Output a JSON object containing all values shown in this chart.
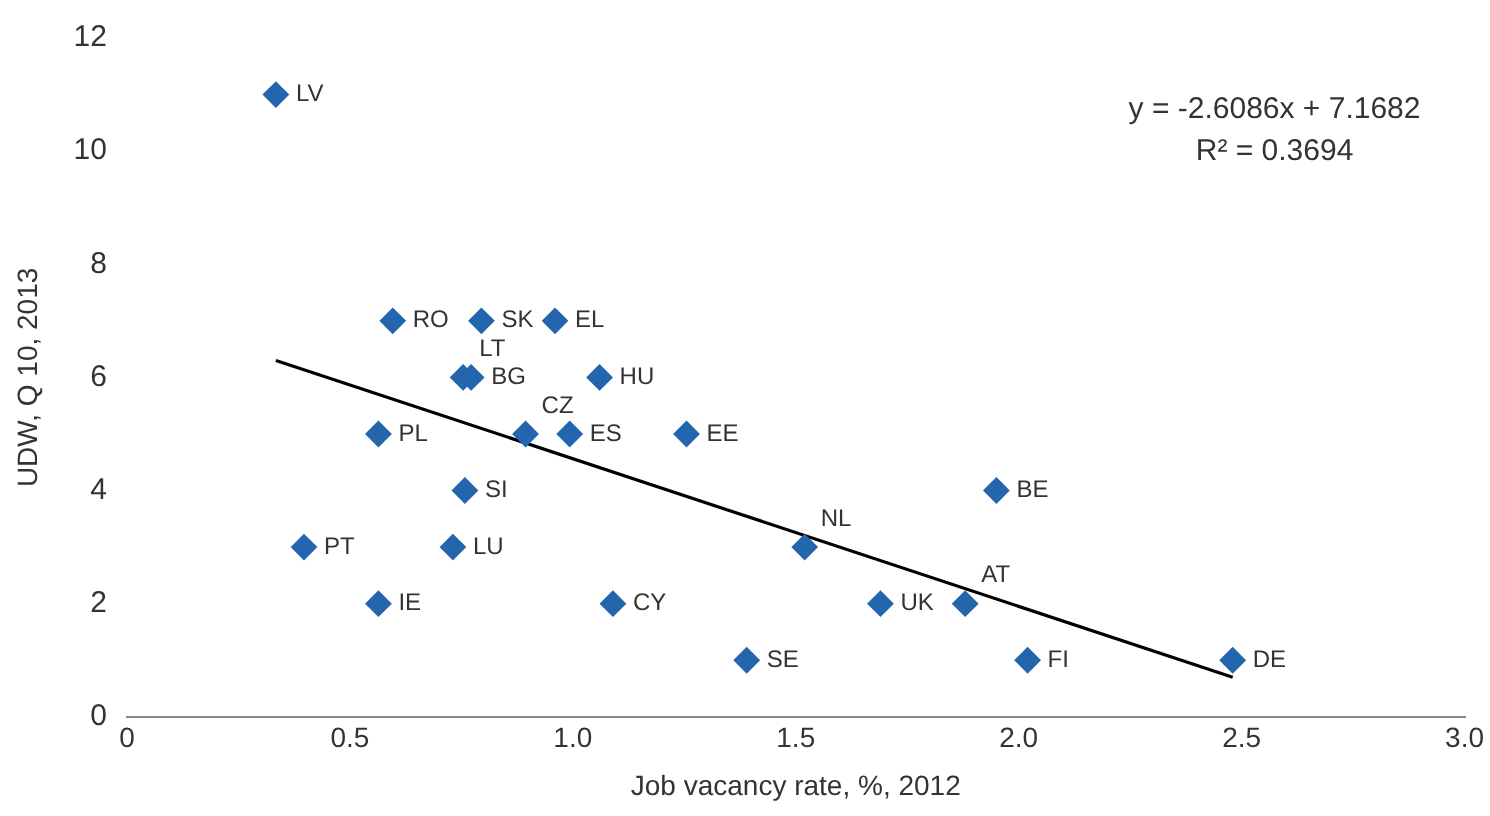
{
  "chart_data": {
    "type": "scatter",
    "xlabel": "Job vacancy rate, %, 2012",
    "ylabel": "UDW, Q 10, 2013",
    "series": [
      {
        "type": "scatter",
        "color": "#2466ae",
        "marker": "diamond",
        "x": [
          0.334,
          0.596,
          0.795,
          0.96,
          0.754,
          0.772,
          1.06,
          0.564,
          0.894,
          0.993,
          1.255,
          0.758,
          1.95,
          0.397,
          0.731,
          1.52,
          0.564,
          1.09,
          1.69,
          1.88,
          1.39,
          2.02,
          2.48
        ],
        "values": [
          11,
          7,
          7,
          7,
          6,
          6,
          6,
          5,
          5,
          5,
          5,
          4,
          4,
          3,
          3,
          3,
          2,
          2,
          2,
          2,
          1,
          1,
          1
        ]
      },
      {
        "type": "line",
        "color": "#000000",
        "marker": "none",
        "line_style": "solid",
        "x": [
          0.334,
          2.48
        ],
        "values": [
          6.3,
          0.7
        ]
      }
    ],
    "annotations": [
      "y = -2.6086x + 7.1682",
      "R² = 0.3694",
      {
        "text": "LV",
        "x": 0.334,
        "y": 11
      },
      {
        "text": "RO",
        "x": 0.596,
        "y": 7
      },
      {
        "text": "SK",
        "x": 0.795,
        "y": 7
      },
      {
        "text": "EL",
        "x": 0.96,
        "y": 7
      },
      {
        "text": "LT",
        "x": 0.754,
        "y": 6
      },
      {
        "text": "BG",
        "x": 0.772,
        "y": 6
      },
      {
        "text": "HU",
        "x": 1.06,
        "y": 6
      },
      {
        "text": "PL",
        "x": 0.564,
        "y": 5
      },
      {
        "text": "CZ",
        "x": 0.894,
        "y": 5
      },
      {
        "text": "ES",
        "x": 0.993,
        "y": 5
      },
      {
        "text": "EE",
        "x": 1.255,
        "y": 5
      },
      {
        "text": "SI",
        "x": 0.758,
        "y": 4
      },
      {
        "text": "BE",
        "x": 1.95,
        "y": 4
      },
      {
        "text": "PT",
        "x": 0.397,
        "y": 3
      },
      {
        "text": "LU",
        "x": 0.731,
        "y": 3
      },
      {
        "text": "NL",
        "x": 1.52,
        "y": 3
      },
      {
        "text": "IE",
        "x": 0.564,
        "y": 2
      },
      {
        "text": "CY",
        "x": 1.09,
        "y": 2
      },
      {
        "text": "UK",
        "x": 1.69,
        "y": 2
      },
      {
        "text": "AT",
        "x": 1.88,
        "y": 2
      },
      {
        "text": "SE",
        "x": 1.39,
        "y": 1
      },
      {
        "text": "FI",
        "x": 2.02,
        "y": 1
      },
      {
        "text": "DE",
        "x": 2.48,
        "y": 1
      }
    ],
    "xlim": [
      0,
      3
    ],
    "xticks": [
      0,
      0.5,
      {
        "value": 1,
        "label": "1.0"
      },
      1.5,
      {
        "value": 2,
        "label": "2.0"
      },
      2.5,
      {
        "value": 3,
        "label": "3.0"
      }
    ],
    "ylim": [
      0,
      12
    ],
    "yticks": [
      0,
      2,
      4,
      6,
      8,
      10,
      12
    ],
    "grid": false,
    "legend": false
  }
}
